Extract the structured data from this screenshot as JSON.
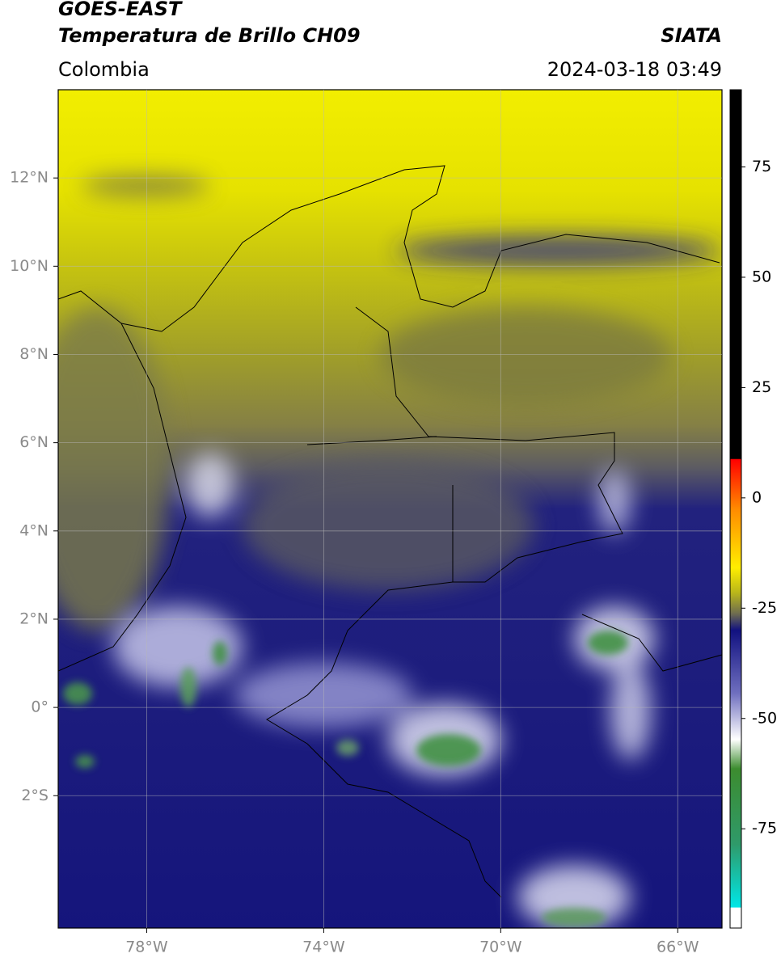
{
  "header": {
    "title": "GOES-EAST",
    "subtitle": "Temperatura de Brillo CH09",
    "source": "SIATA",
    "region": "Colombia",
    "timestamp": "2024-03-18 03:49"
  },
  "map": {
    "xlim": [
      -80,
      -65
    ],
    "ylim": [
      -5,
      14
    ],
    "xticks": [
      {
        "value": -78,
        "label": "78°W"
      },
      {
        "value": -74,
        "label": "74°W"
      },
      {
        "value": -70,
        "label": "70°W"
      },
      {
        "value": -66,
        "label": "66°W"
      }
    ],
    "yticks": [
      {
        "value": 12,
        "label": "12°N"
      },
      {
        "value": 10,
        "label": "10°N"
      },
      {
        "value": 8,
        "label": "8°N"
      },
      {
        "value": 6,
        "label": "6°N"
      },
      {
        "value": 4,
        "label": "4°N"
      },
      {
        "value": 2,
        "label": "2°N"
      },
      {
        "value": 0,
        "label": "0°"
      },
      {
        "value": -2,
        "label": "2°S"
      }
    ]
  },
  "colorbar": {
    "lim": [
      -97.5,
      92.5
    ],
    "ticks": [
      75,
      50,
      25,
      0,
      -25,
      -50,
      -75
    ]
  }
}
